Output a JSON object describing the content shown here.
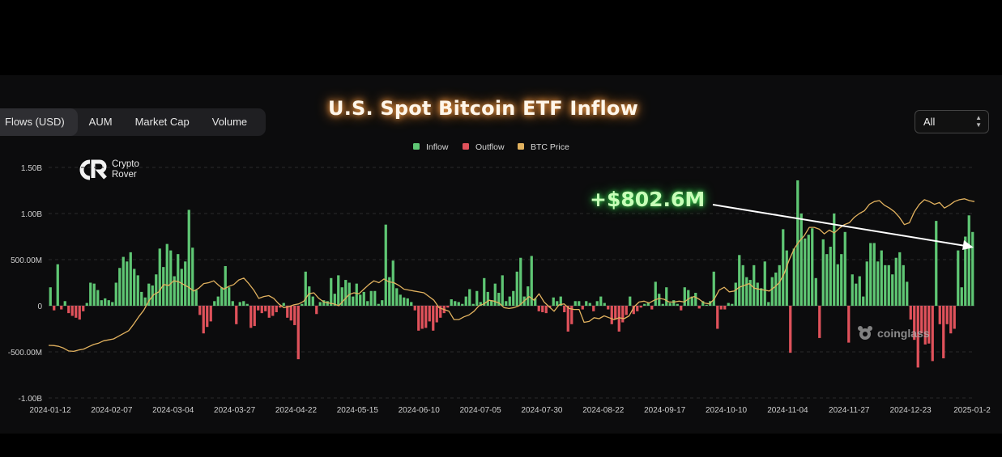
{
  "tabs": [
    "Flows (USD)",
    "AUM",
    "Market Cap",
    "Volume"
  ],
  "title": "U.S. Spot Bitcoin ETF Inflow",
  "range_select": "All",
  "brand": {
    "line1": "Crypto",
    "line2": "Rover"
  },
  "annotation": "+$802.6M",
  "watermark": "coinglass",
  "colors": {
    "inflow": "#5fc774",
    "outflow": "#e0525b",
    "btc": "#e2b25f",
    "background": "#0c0c0d"
  },
  "icons": {
    "brand": "crypto-rover-logo-icon",
    "watermark": "coinglass-logo-icon",
    "select": "chevron-updown-icon"
  },
  "chart_data": {
    "type": "bar",
    "legend": [
      {
        "name": "Inflow",
        "color": "#5fc774"
      },
      {
        "name": "Outflow",
        "color": "#e0525b"
      },
      {
        "name": "BTC Price",
        "color": "#e2b25f"
      }
    ],
    "legend_position": "top-center",
    "ylim": [
      -1000,
      1500
    ],
    "y_unit": "USD millions",
    "yticks": [
      1500,
      1000,
      500,
      0,
      -500,
      -1000
    ],
    "ytick_labels": [
      "1.50B",
      "1.00B",
      "500.00M",
      "0",
      "-500.00M",
      "-1.00B"
    ],
    "xtick_labels": [
      "2024-01-12",
      "2024-02-07",
      "2024-03-04",
      "2024-03-27",
      "2024-04-22",
      "2024-05-15",
      "2024-06-10",
      "2024-07-05",
      "2024-07-30",
      "2024-08-22",
      "2024-09-17",
      "2024-10-10",
      "2024-11-04",
      "2024-11-27",
      "2024-12-23",
      "2025-01-2"
    ],
    "grid": "horizontal dashed",
    "series": [
      {
        "name": "Flows (USD)",
        "type": "bar",
        "values": [
          200,
          -50,
          450,
          -40,
          50,
          -80,
          -110,
          -130,
          -150,
          -60,
          30,
          250,
          240,
          170,
          60,
          80,
          60,
          40,
          250,
          410,
          530,
          480,
          580,
          400,
          330,
          150,
          90,
          240,
          220,
          340,
          620,
          420,
          670,
          600,
          320,
          560,
          400,
          480,
          1040,
          630,
          170,
          -100,
          -300,
          -230,
          -170,
          50,
          100,
          200,
          430,
          200,
          50,
          -200,
          40,
          50,
          20,
          -240,
          -220,
          -50,
          -80,
          -60,
          -130,
          -110,
          -70,
          -20,
          30,
          -130,
          -160,
          -210,
          -580,
          20,
          370,
          210,
          100,
          -90,
          40,
          60,
          50,
          300,
          130,
          330,
          200,
          280,
          250,
          100,
          240,
          120,
          150,
          50,
          160,
          160,
          20,
          60,
          880,
          310,
          490,
          190,
          120,
          90,
          80,
          40,
          -50,
          -270,
          -250,
          -240,
          -170,
          -270,
          -180,
          -130,
          -80,
          -20,
          70,
          50,
          40,
          20,
          100,
          180,
          20,
          160,
          40,
          300,
          150,
          60,
          240,
          140,
          330,
          50,
          100,
          160,
          370,
          520,
          100,
          210,
          540,
          80,
          -60,
          -70,
          -80,
          -20,
          90,
          50,
          100,
          -70,
          -280,
          -200,
          50,
          50,
          -40,
          50,
          30,
          -60,
          50,
          100,
          30,
          -40,
          -200,
          -150,
          -280,
          -180,
          -100,
          100,
          -90,
          -60,
          -20,
          20,
          30,
          -40,
          260,
          130,
          20,
          200,
          30,
          60,
          20,
          -50,
          200,
          170,
          100,
          140,
          -30,
          50,
          10,
          50,
          370,
          -250,
          -40,
          -40,
          30,
          20,
          250,
          550,
          440,
          310,
          280,
          440,
          250,
          190,
          480,
          40,
          310,
          360,
          440,
          830,
          600,
          -510,
          620,
          1360,
          1000,
          730,
          770,
          840,
          300,
          -350,
          720,
          560,
          640,
          1000,
          450,
          560,
          800,
          -400,
          340,
          240,
          320,
          100,
          480,
          680,
          680,
          480,
          600,
          440,
          440,
          340,
          520,
          580,
          440,
          260,
          -150,
          -370,
          -670,
          -300,
          -420,
          -410,
          -600,
          920,
          -200,
          -570,
          -200,
          -300,
          -250,
          600,
          200,
          750,
          980,
          800
        ]
      },
      {
        "name": "BTC Price",
        "type": "line",
        "values": [
          -430,
          -432,
          -440,
          -460,
          -490,
          -495,
          -480,
          -470,
          -445,
          -420,
          -405,
          -380,
          -370,
          -360,
          -330,
          -300,
          -270,
          -200,
          -120,
          -50,
          50,
          120,
          150,
          230,
          220,
          270,
          260,
          230,
          200,
          160,
          190,
          240,
          250,
          270,
          220,
          180,
          210,
          230,
          280,
          300,
          240,
          170,
          80,
          100,
          110,
          80,
          20,
          -20,
          -10,
          10,
          20,
          50,
          130,
          140,
          80,
          40,
          30,
          20,
          0,
          60,
          120,
          140,
          130,
          180,
          230,
          270,
          250,
          290,
          260,
          250,
          220,
          180,
          170,
          160,
          150,
          140,
          100,
          60,
          -20,
          -40,
          -60,
          -150,
          -150,
          -120,
          -100,
          -60,
          0,
          20,
          60,
          50,
          30,
          -20,
          -30,
          -20,
          0,
          50,
          100,
          60,
          130,
          40,
          -10,
          -60,
          10,
          20,
          -30,
          -40,
          -40,
          -180,
          -170,
          -130,
          -140,
          -110,
          -130,
          -150,
          -130,
          -140,
          -110,
          -10,
          40,
          50,
          30,
          60,
          80,
          70,
          40,
          40,
          50,
          40,
          80,
          100,
          70,
          30,
          20,
          70,
          170,
          200,
          150,
          160,
          200,
          220,
          240,
          190,
          180,
          170,
          160,
          200,
          250,
          350,
          500,
          620,
          700,
          760,
          850,
          850,
          830,
          780,
          820,
          790,
          840,
          880,
          900,
          960,
          1000,
          1030,
          1100,
          1130,
          1140,
          1090,
          1060,
          1020,
          960,
          880,
          900,
          1020,
          1100,
          1150,
          1130,
          1100,
          1120,
          1060,
          1090,
          1130,
          1150,
          1160,
          1140,
          1130
        ]
      }
    ]
  }
}
